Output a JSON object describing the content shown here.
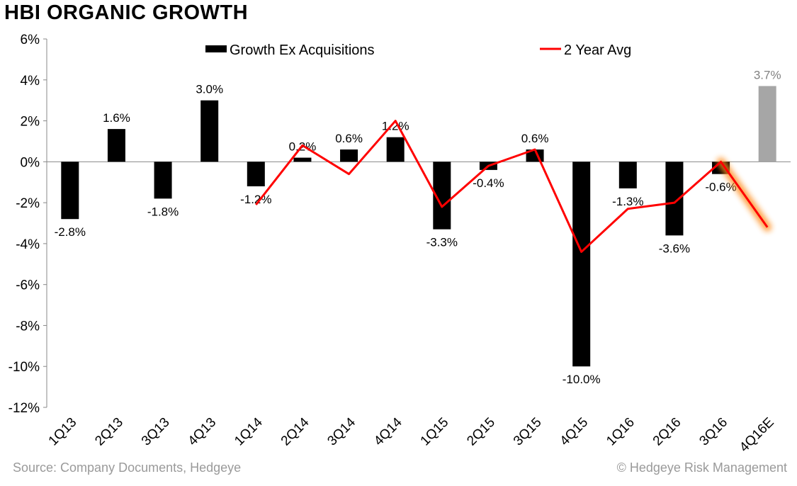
{
  "title": "HBI ORGANIC GROWTH",
  "footer": {
    "source": "Source: Company Documents, Hedgeye",
    "copyright": "© Hedgeye Risk Management"
  },
  "chart_data": {
    "type": "bar",
    "title": "HBI ORGANIC GROWTH",
    "xlabel": "",
    "ylabel": "",
    "ylim": [
      -12,
      6
    ],
    "yticks": [
      6,
      4,
      2,
      0,
      -2,
      -4,
      -6,
      -8,
      -10,
      -12
    ],
    "ytick_labels": [
      "6%",
      "4%",
      "2%",
      "0%",
      "-2%",
      "-4%",
      "-6%",
      "-8%",
      "-10%",
      "-12%"
    ],
    "grid": false,
    "legend_position": "top",
    "categories": [
      "1Q13",
      "2Q13",
      "3Q13",
      "4Q13",
      "1Q14",
      "2Q14",
      "3Q14",
      "4Q14",
      "1Q15",
      "2Q15",
      "3Q15",
      "4Q15",
      "1Q16",
      "2Q16",
      "3Q16",
      "4Q16E"
    ],
    "series": [
      {
        "name": "Growth Ex Acquisitions",
        "type": "bar",
        "color": "#000000",
        "estimate_color": "#a6a6a6",
        "values": [
          -2.8,
          1.6,
          -1.8,
          3.0,
          -1.2,
          0.2,
          0.6,
          1.2,
          -3.3,
          -0.4,
          0.6,
          -10.0,
          -1.3,
          -3.6,
          -0.6,
          3.7
        ],
        "labels": [
          "-2.8%",
          "1.6%",
          "-1.8%",
          "3.0%",
          "-1.2%",
          "0.2%",
          "0.6%",
          "1.2%",
          "-3.3%",
          "-0.4%",
          "0.6%",
          "-10.0%",
          "-1.3%",
          "-3.6%",
          "-0.6%",
          "3.7%"
        ]
      },
      {
        "name": "2 Year Avg",
        "type": "line",
        "color": "#ff0000",
        "highlight_color": "#ff8c1a",
        "values": [
          null,
          null,
          null,
          null,
          -2.1,
          0.8,
          -0.6,
          2.0,
          -2.2,
          -0.2,
          0.6,
          -4.4,
          -2.3,
          -2.0,
          0.0,
          -3.2
        ]
      }
    ]
  }
}
